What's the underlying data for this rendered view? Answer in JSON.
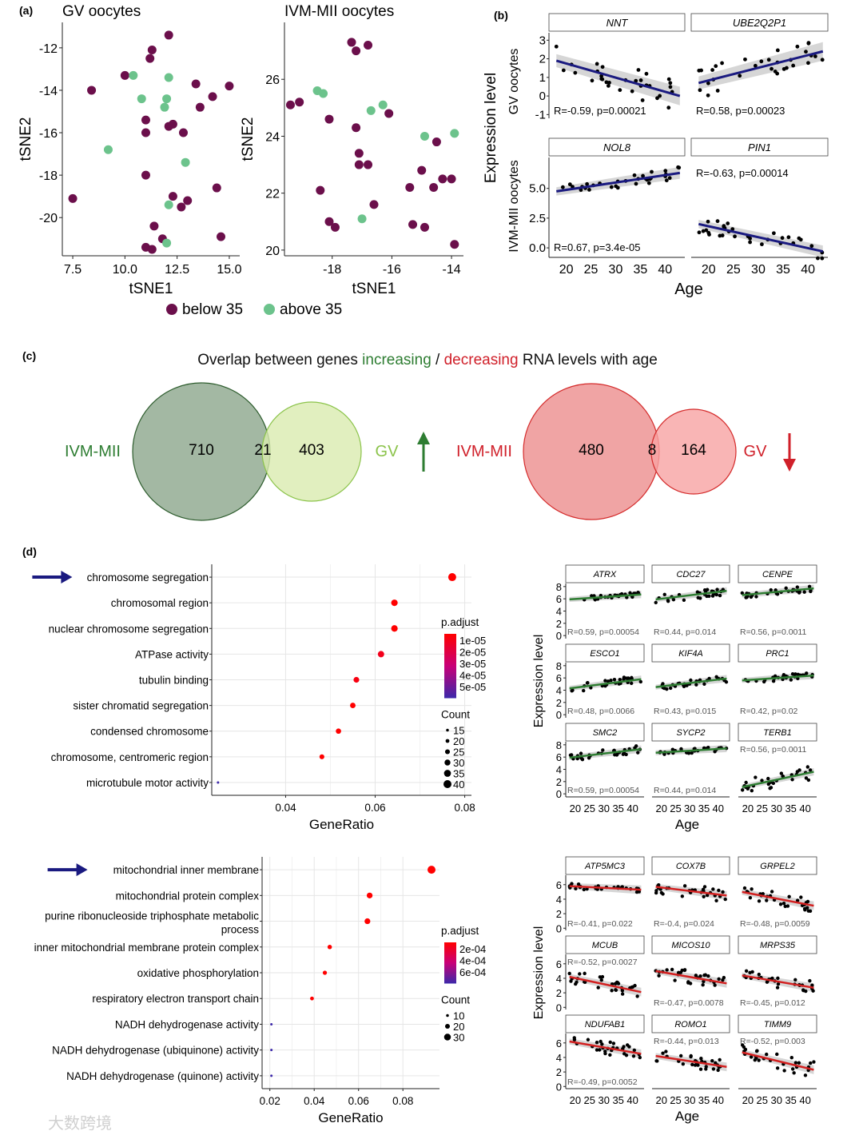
{
  "panel_labels": {
    "a": "(a)",
    "b": "(b)",
    "c": "(c)",
    "d": "(d)"
  },
  "colors": {
    "below35": "#6b0f4b",
    "above35": "#6cc38c",
    "increasing": "#2e7d32",
    "decreasing": "#d0202a",
    "trend_up": "#2e7d32",
    "trend_down": "#d32020",
    "trend_b": "#1a1a80",
    "arrow": "#1a1a80"
  },
  "watermark": "大数跨境",
  "chart_data": [
    {
      "id": "tsne-gv",
      "type": "scatter",
      "title": "GV oocytes",
      "xlabel": "tSNE1",
      "ylabel": "tSNE2",
      "xlim": [
        7,
        15.5
      ],
      "ylim": [
        -21.8,
        -10.8
      ],
      "xticks": [
        "7.5",
        "10.0",
        "12.5",
        "15.0"
      ],
      "xtick_values": [
        7.5,
        10,
        12.5,
        15
      ],
      "yticks": [
        "-12",
        "-14",
        "-16",
        "-18",
        "-20"
      ],
      "ytick_values": [
        -12,
        -14,
        -16,
        -18,
        -20
      ],
      "points": [
        [
          12.1,
          -11.4,
          "b"
        ],
        [
          11.3,
          -12.1,
          "b"
        ],
        [
          11.2,
          -12.5,
          "b"
        ],
        [
          10.0,
          -13.3,
          "b"
        ],
        [
          10.4,
          -13.3,
          "a"
        ],
        [
          12.1,
          -13.4,
          "a"
        ],
        [
          8.4,
          -14.0,
          "b"
        ],
        [
          13.4,
          -13.7,
          "b"
        ],
        [
          15.0,
          -13.8,
          "b"
        ],
        [
          10.8,
          -14.4,
          "a"
        ],
        [
          12.0,
          -14.4,
          "a"
        ],
        [
          14.2,
          -14.3,
          "b"
        ],
        [
          13.6,
          -14.8,
          "b"
        ],
        [
          11.9,
          -14.8,
          "a"
        ],
        [
          11.0,
          -15.4,
          "b"
        ],
        [
          12.1,
          -15.7,
          "b"
        ],
        [
          12.3,
          -15.6,
          "b"
        ],
        [
          11.0,
          -16.0,
          "b"
        ],
        [
          12.8,
          -16.0,
          "b"
        ],
        [
          9.2,
          -16.8,
          "a"
        ],
        [
          12.9,
          -17.4,
          "a"
        ],
        [
          11.0,
          -18.0,
          "b"
        ],
        [
          14.4,
          -18.6,
          "b"
        ],
        [
          7.5,
          -19.1,
          "b"
        ],
        [
          12.3,
          -19.0,
          "b"
        ],
        [
          13.0,
          -19.2,
          "b"
        ],
        [
          12.1,
          -19.4,
          "a"
        ],
        [
          12.7,
          -19.5,
          "b"
        ],
        [
          11.4,
          -20.4,
          "b"
        ],
        [
          14.6,
          -20.9,
          "b"
        ],
        [
          11.8,
          -21.0,
          "b"
        ],
        [
          12.0,
          -21.2,
          "a"
        ],
        [
          11.0,
          -21.4,
          "b"
        ],
        [
          11.3,
          -21.5,
          "b"
        ]
      ]
    },
    {
      "id": "tsne-ivm",
      "type": "scatter",
      "title": "IVM-MII oocytes",
      "xlabel": "tSNE1",
      "ylabel": "tSNE2",
      "xlim": [
        -19.6,
        -13.6
      ],
      "ylim": [
        19.8,
        28.0
      ],
      "xticks": [
        "-18",
        "-16",
        "-14"
      ],
      "xtick_values": [
        -18,
        -16,
        -14
      ],
      "yticks": [
        "26",
        "24",
        "22",
        "20"
      ],
      "ytick_values": [
        26,
        24,
        22,
        20
      ],
      "points": [
        [
          -17.35,
          27.3,
          "b"
        ],
        [
          -17.2,
          27.0,
          "b"
        ],
        [
          -16.8,
          27.2,
          "b"
        ],
        [
          -18.5,
          25.6,
          "a"
        ],
        [
          -18.3,
          25.5,
          "a"
        ],
        [
          -19.1,
          25.2,
          "b"
        ],
        [
          -19.4,
          25.1,
          "b"
        ],
        [
          -16.7,
          24.9,
          "a"
        ],
        [
          -16.3,
          25.1,
          "a"
        ],
        [
          -16.1,
          24.8,
          "b"
        ],
        [
          -18.1,
          24.6,
          "b"
        ],
        [
          -17.2,
          24.3,
          "b"
        ],
        [
          -14.9,
          24.0,
          "a"
        ],
        [
          -13.9,
          24.1,
          "a"
        ],
        [
          -14.5,
          23.8,
          "b"
        ],
        [
          -17.1,
          23.4,
          "b"
        ],
        [
          -17.1,
          23.0,
          "b"
        ],
        [
          -16.8,
          23.0,
          "b"
        ],
        [
          -15.0,
          22.8,
          "b"
        ],
        [
          -14.3,
          22.5,
          "b"
        ],
        [
          -14.0,
          22.5,
          "b"
        ],
        [
          -18.4,
          22.1,
          "b"
        ],
        [
          -15.4,
          22.2,
          "b"
        ],
        [
          -14.6,
          22.2,
          "b"
        ],
        [
          -16.6,
          21.6,
          "b"
        ],
        [
          -18.1,
          21.0,
          "b"
        ],
        [
          -17.9,
          20.8,
          "b"
        ],
        [
          -17.0,
          21.1,
          "a"
        ],
        [
          -15.3,
          20.9,
          "b"
        ],
        [
          -14.9,
          20.8,
          "b"
        ],
        [
          -13.9,
          20.2,
          "b"
        ]
      ]
    },
    {
      "id": "tsne-legend",
      "type": "legend",
      "entries": [
        {
          "key": "b",
          "label": "below 35"
        },
        {
          "key": "a",
          "label": "above 35"
        }
      ]
    },
    {
      "id": "age-expression-b",
      "type": "scatter",
      "xlabel": "Age",
      "ylabel": "Expression level",
      "row_labels": [
        "GV oocytes",
        "IVM-MII oocytes"
      ],
      "xticks": [
        "20",
        "25",
        "30",
        "35",
        "40"
      ],
      "rows": [
        {
          "yticks": [
            "3",
            "2",
            "1",
            "0",
            "-1"
          ],
          "ylim": [
            -1.2,
            3.4
          ],
          "panels": [
            {
              "gene": "NNT",
              "stat": "R=-0.59, p=0.00021",
              "trend": [
                1.9,
                0.0
              ],
              "spread": 0.9
            },
            {
              "gene": "UBE2Q2P1",
              "stat": "R=0.58, p=0.00023",
              "trend": [
                0.7,
                2.4
              ],
              "spread": 0.8
            }
          ]
        },
        {
          "yticks": [
            "5.0",
            "2.5",
            "0.0"
          ],
          "ylim": [
            -0.8,
            7.6
          ],
          "panels": [
            {
              "gene": "NOL8",
              "stat": "R=0.67, p=3.4e-05",
              "trend": [
                4.75,
                6.3
              ],
              "spread": 0.5
            },
            {
              "gene": "PIN1",
              "stat": "R=-0.63, p=0.00014",
              "trend": [
                2.0,
                -0.3
              ],
              "spread": 0.7
            }
          ]
        }
      ]
    },
    {
      "id": "venn",
      "type": "venn",
      "title_parts": {
        "prefix": "Overlap between genes ",
        "increasing": "increasing",
        "sep": " / ",
        "decreasing": "decreasing",
        "suffix": "  RNA levels with age"
      },
      "sets": [
        {
          "left_label": "IVM-MII",
          "right_label": "GV",
          "only_left": "710",
          "overlap": "21",
          "only_right": "403",
          "direction": "up"
        },
        {
          "left_label": "IVM-MII",
          "right_label": "GV",
          "only_left": "480",
          "overlap": "8",
          "only_right": "164",
          "direction": "down"
        }
      ]
    },
    {
      "id": "go-dot-top",
      "type": "scatter",
      "xlabel": "GeneRatio",
      "xlim": [
        0.0235,
        0.0815
      ],
      "xticks": [
        "0.04",
        "0.06",
        "0.08"
      ],
      "xtick_values": [
        0.04,
        0.06,
        0.08
      ],
      "highlight": "chromosome segregation",
      "terms": [
        {
          "label": "chromosome segregation",
          "ratio": 0.0772,
          "count": 40,
          "padj": 1e-05
        },
        {
          "label": "chromosomal region",
          "ratio": 0.0643,
          "count": 33,
          "padj": 1e-05
        },
        {
          "label": "nuclear chromosome segregation",
          "ratio": 0.0643,
          "count": 33,
          "padj": 1e-05
        },
        {
          "label": "ATPase activity",
          "ratio": 0.0613,
          "count": 32,
          "padj": 1.5e-05
        },
        {
          "label": "tubulin binding",
          "ratio": 0.0558,
          "count": 29,
          "padj": 1.3e-05
        },
        {
          "label": "sister chromatid segregation",
          "ratio": 0.055,
          "count": 28,
          "padj": 1e-05
        },
        {
          "label": "condensed chromosome",
          "ratio": 0.0518,
          "count": 27,
          "padj": 1e-05
        },
        {
          "label": "chromosome, centromeric region",
          "ratio": 0.0481,
          "count": 25,
          "padj": 1e-05
        },
        {
          "label": "microtubule motor activity",
          "ratio": 0.0249,
          "count": 13,
          "padj": 5.5e-05
        }
      ],
      "padj_title": "p.adjust",
      "padj_ticks": [
        "1e-05",
        "2e-05",
        "3e-05",
        "4e-05",
        "5e-05"
      ],
      "count_title": "Count",
      "count_ticks": [
        "15",
        "20",
        "25",
        "30",
        "35",
        "40"
      ]
    },
    {
      "id": "go-dot-bottom",
      "type": "scatter",
      "xlabel": "GeneRatio",
      "xlim": [
        0.0165,
        0.0965
      ],
      "xticks": [
        "0.02",
        "0.04",
        "0.06",
        "0.08"
      ],
      "xtick_values": [
        0.02,
        0.04,
        0.06,
        0.08
      ],
      "highlight": "mitochondrial inner membrane",
      "terms": [
        {
          "label": "mitochondrial inner membrane",
          "ratio": 0.0929,
          "count": 36,
          "padj": 0.0001
        },
        {
          "label": "mitochondrial protein complex",
          "ratio": 0.065,
          "count": 25,
          "padj": 0.0001
        },
        {
          "label": "purine ribonucleoside triphosphate metabolic process",
          "label_lines": [
            "purine ribonucleoside triphosphate metabolic",
            "process"
          ],
          "ratio": 0.064,
          "count": 25,
          "padj": 0.0001
        },
        {
          "label": "inner mitochondrial membrane protein complex",
          "ratio": 0.047,
          "count": 18,
          "padj": 0.0001
        },
        {
          "label": "oxidative phosphorylation",
          "ratio": 0.0448,
          "count": 17,
          "padj": 0.0001
        },
        {
          "label": "respiratory electron transport chain",
          "ratio": 0.039,
          "count": 15,
          "padj": 0.0001
        },
        {
          "label": "NADH dehydrogenase activity",
          "ratio": 0.0207,
          "count": 8,
          "padj": 0.0007
        },
        {
          "label": "NADH dehydrogenase (ubiquinone) activity",
          "ratio": 0.0207,
          "count": 8,
          "padj": 0.0007
        },
        {
          "label": "NADH dehydrogenase (quinone) activity",
          "ratio": 0.0207,
          "count": 8,
          "padj": 0.0007
        }
      ],
      "padj_title": "p.adjust",
      "padj_ticks": [
        "2e-04",
        "4e-04",
        "6e-04"
      ],
      "count_title": "Count",
      "count_ticks": [
        "10",
        "20",
        "30"
      ]
    },
    {
      "id": "facet-up",
      "type": "scatter",
      "xlabel": "Age",
      "ylabel": "Expression level",
      "xticks": [
        "20",
        "25",
        "30",
        "35",
        "40"
      ],
      "yticks": [
        "8",
        "6",
        "4",
        "2",
        "0"
      ],
      "ylim": [
        -0.5,
        8.5
      ],
      "direction": "up",
      "panels": [
        {
          "gene": "ATRX",
          "stat": "R=0.59, p=0.00054",
          "trend": [
            5.9,
            6.7
          ],
          "spread": 0.4
        },
        {
          "gene": "CDC27",
          "stat": "R=0.44, p=0.014",
          "trend": [
            5.9,
            7.3
          ],
          "spread": 0.7
        },
        {
          "gene": "CENPE",
          "stat": "R=0.56, p=0.0011",
          "trend": [
            6.6,
            7.7
          ],
          "spread": 0.5
        },
        {
          "gene": "ESCO1",
          "stat": "R=0.48, p=0.0066",
          "trend": [
            4.3,
            5.8
          ],
          "spread": 0.7
        },
        {
          "gene": "KIF4A",
          "stat": "R=0.43, p=0.015",
          "trend": [
            4.5,
            5.9
          ],
          "spread": 0.6
        },
        {
          "gene": "PRC1",
          "stat": "R=0.42, p=0.02",
          "trend": [
            5.6,
            6.4
          ],
          "spread": 0.5
        },
        {
          "gene": "SMC2",
          "stat": "R=0.59, p=0.00054",
          "trend": [
            5.9,
            7.3
          ],
          "spread": 0.6
        },
        {
          "gene": "SYCP2",
          "stat": "R=0.44, p=0.014",
          "trend": [
            6.7,
            7.4
          ],
          "spread": 0.4
        },
        {
          "gene": "TERB1",
          "stat": "R=0.56, p=0.0011",
          "trend": [
            1.1,
            3.6
          ],
          "spread": 1.2,
          "stat_top": true
        }
      ]
    },
    {
      "id": "facet-down",
      "type": "scatter",
      "xlabel": "Age",
      "ylabel": "Expression level",
      "xticks": [
        "20",
        "25",
        "30",
        "35",
        "40"
      ],
      "yticks": [
        "6",
        "4",
        "2",
        "0"
      ],
      "ylim": [
        -0.3,
        7.3
      ],
      "direction": "down",
      "panels": [
        {
          "gene": "ATP5MC3",
          "stat": "R=-0.41, p=0.022",
          "trend": [
            5.8,
            5.3
          ],
          "spread": 0.4
        },
        {
          "gene": "COX7B",
          "stat": "R=-0.4, p=0.024",
          "trend": [
            5.7,
            4.5
          ],
          "spread": 0.9
        },
        {
          "gene": "GRPEL2",
          "stat": "R=-0.48, p=0.0059",
          "trend": [
            5.0,
            3.1
          ],
          "spread": 0.9
        },
        {
          "gene": "MCUB",
          "stat": "R=-0.52, p=0.0027",
          "trend": [
            4.2,
            2.1
          ],
          "spread": 1.0,
          "stat_top": true
        },
        {
          "gene": "MICOS10",
          "stat": "R=-0.47, p=0.0078",
          "trend": [
            5.0,
            3.3
          ],
          "spread": 0.9
        },
        {
          "gene": "MRPS35",
          "stat": "R=-0.45, p=0.012",
          "trend": [
            4.4,
            2.7
          ],
          "spread": 0.9
        },
        {
          "gene": "NDUFAB1",
          "stat": "R=-0.49, p=0.0052",
          "trend": [
            6.2,
            4.5
          ],
          "spread": 0.9
        },
        {
          "gene": "ROMO1",
          "stat": "R=-0.44, p=0.013",
          "trend": [
            4.2,
            2.7
          ],
          "spread": 0.9,
          "stat_top": true
        },
        {
          "gene": "TIMM9",
          "stat": "R=-0.52, p=0.003",
          "trend": [
            4.7,
            2.3
          ],
          "spread": 1.1,
          "stat_top": true
        }
      ]
    }
  ]
}
